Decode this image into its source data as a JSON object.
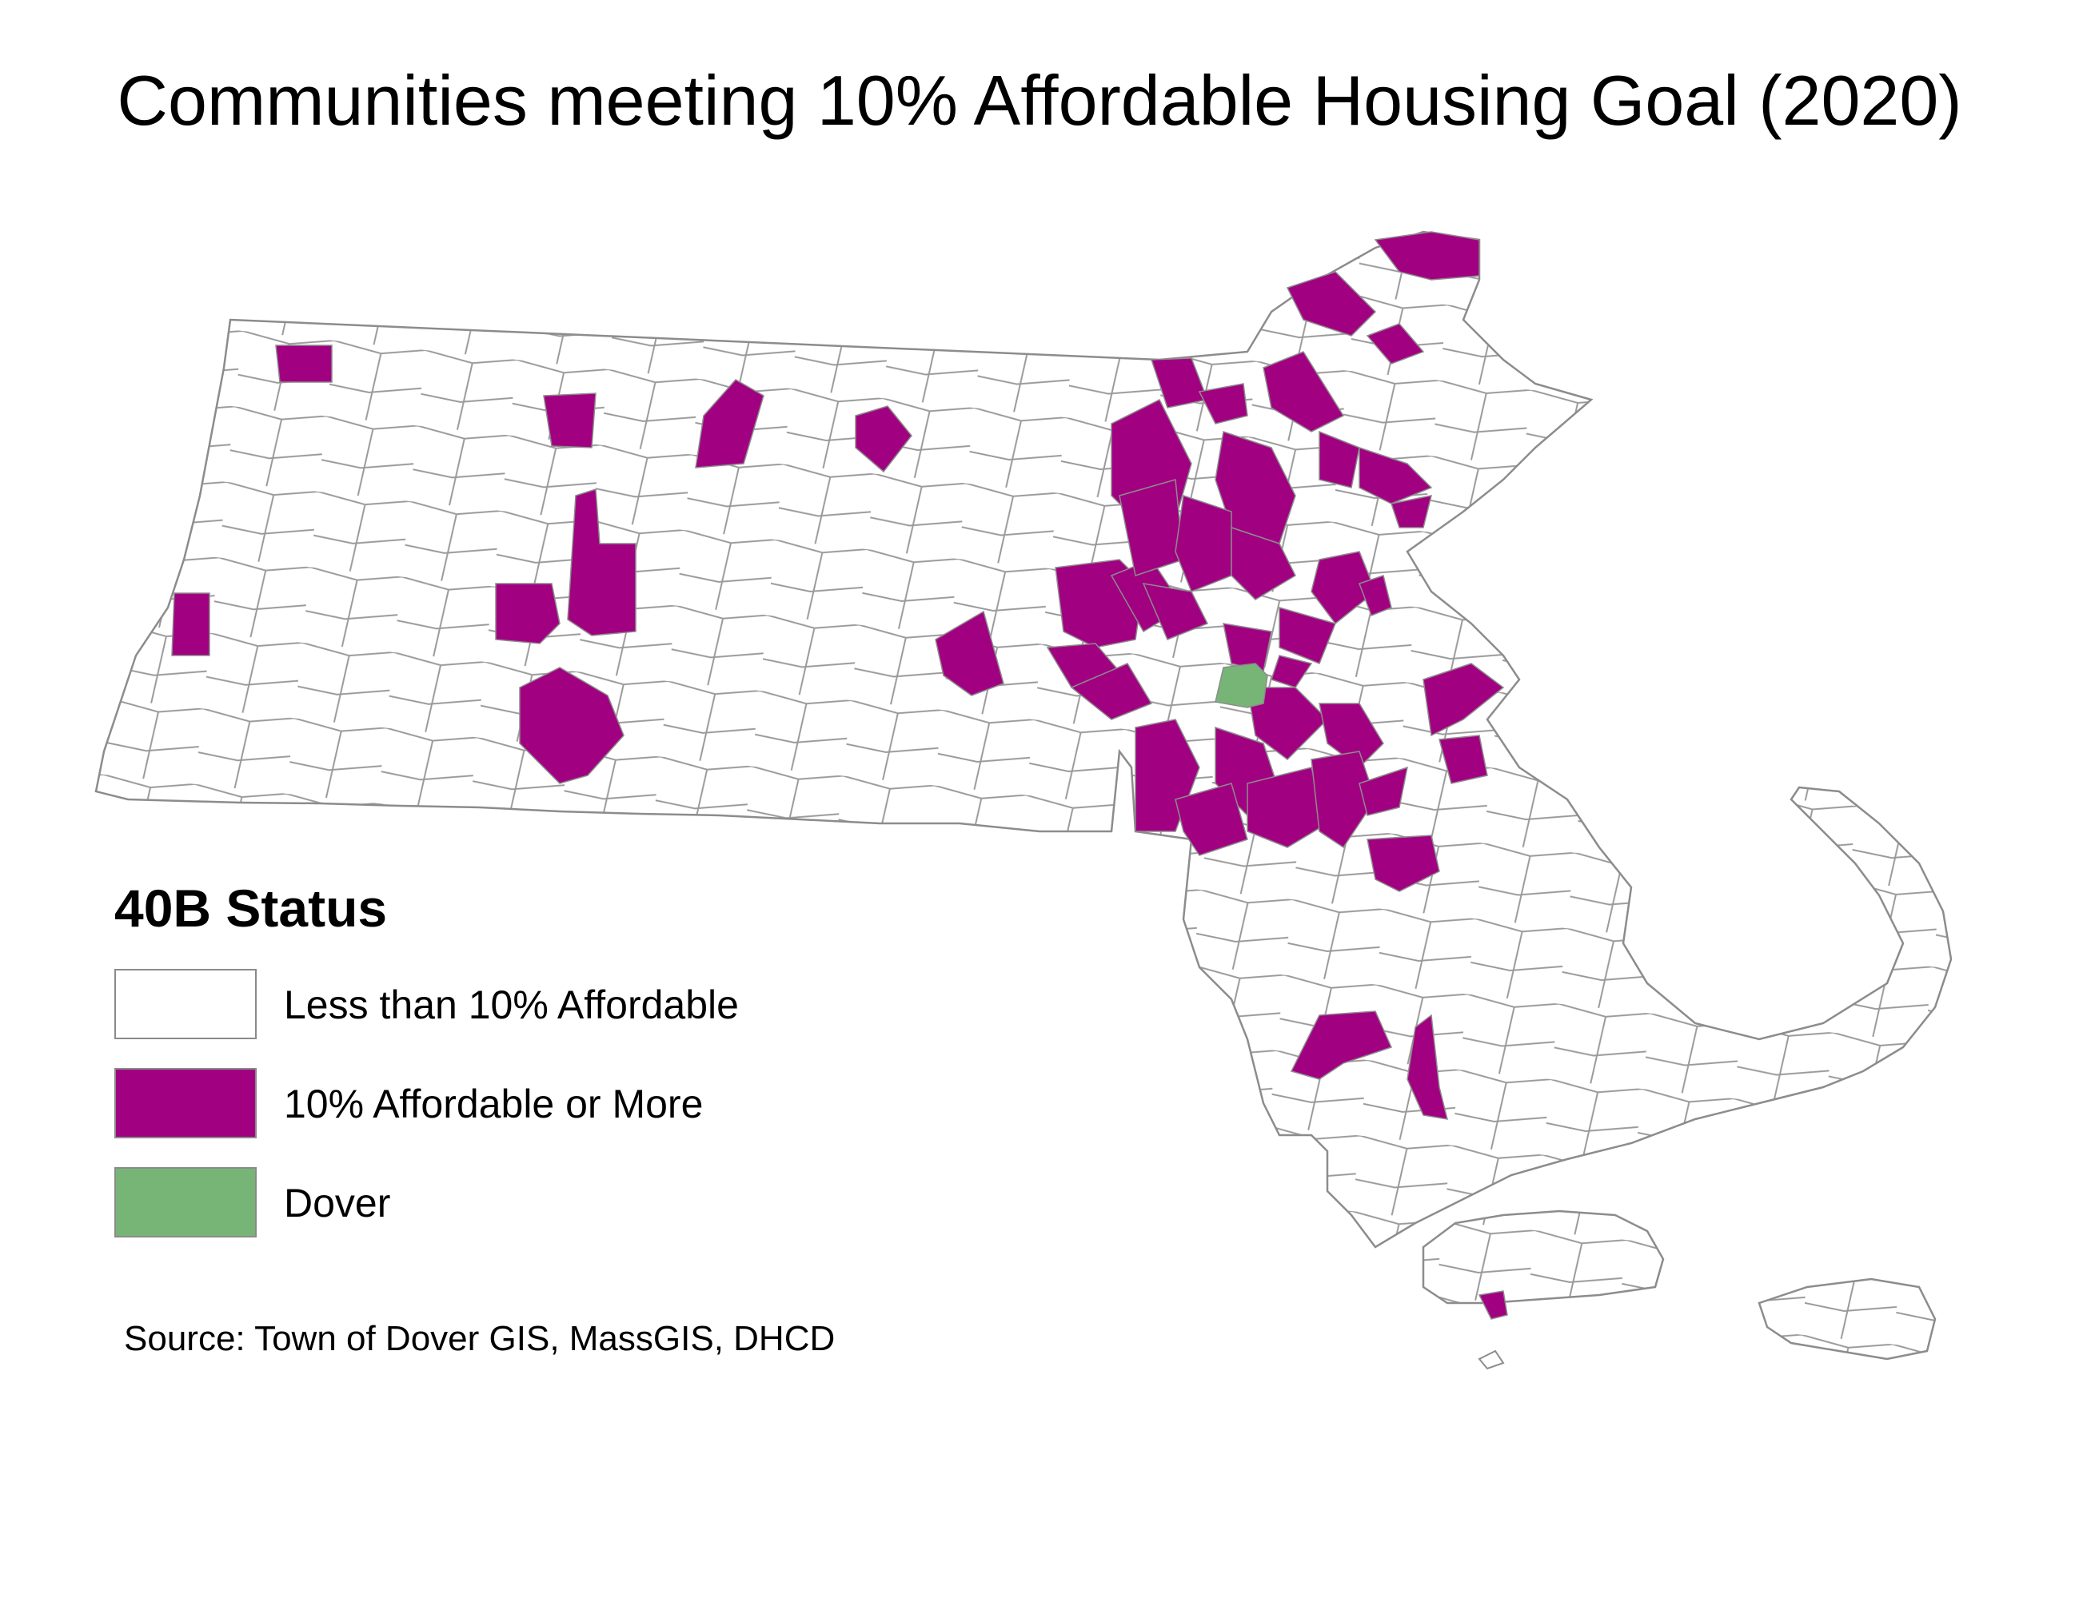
{
  "title": "Communities meeting 10% Affordable Housing Goal (2020)",
  "legend": {
    "title": "40B Status",
    "items": [
      {
        "label": "Less than 10% Affordable",
        "color": "#ffffff"
      },
      {
        "label": "10% Affordable or More",
        "color": "#a10080"
      },
      {
        "label": "Dover",
        "color": "#77b576"
      }
    ]
  },
  "source": "Source: Town of Dover GIS, MassGIS, DHCD",
  "colors": {
    "outline": "#8c8c8c",
    "affordable": "#a10080",
    "dover": "#77b576",
    "other": "#ffffff"
  }
}
